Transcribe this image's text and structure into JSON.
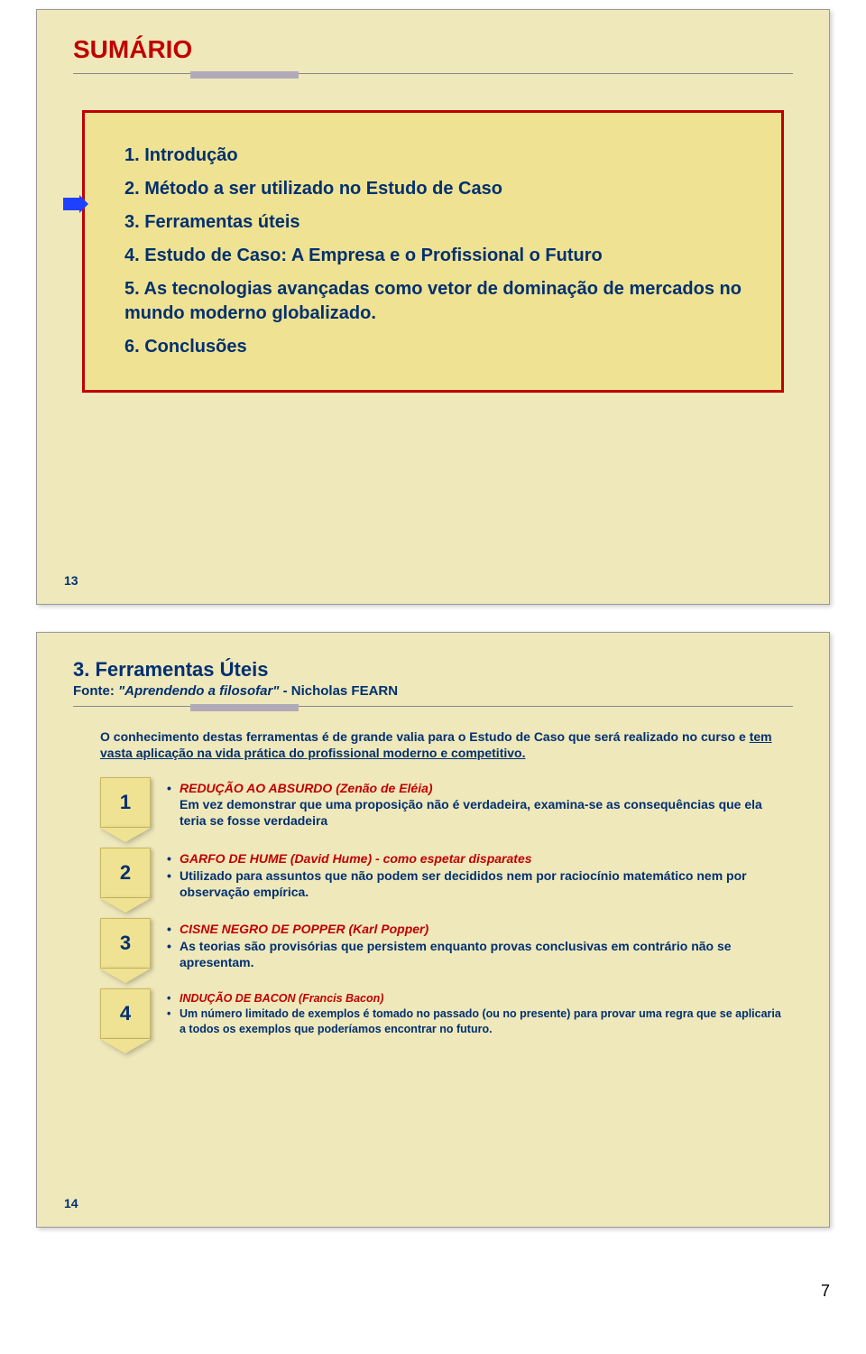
{
  "page_number": "7",
  "slide1": {
    "title": "SUMÁRIO",
    "number": "13",
    "items": [
      "1. Introdução",
      "2. Método a ser utilizado no Estudo de Caso",
      "3. Ferramentas úteis",
      "4. Estudo de Caso: A Empresa e o Profissional o Futuro",
      "5. As tecnologias avançadas como vetor de dominação de mercados no mundo moderno globalizado.",
      "6. Conclusões"
    ]
  },
  "slide2": {
    "number": "14",
    "heading": "3. Ferramentas Úteis",
    "source_label": "Fonte: ",
    "source_quote": "\"Aprendendo a filosofar\"",
    "source_author": " - Nicholas FEARN",
    "intro_a": "O conhecimento destas ferramentas é de grande valia para o Estudo de Caso que será realizado no curso e ",
    "intro_u": "tem vasta aplicação na vida prática do profissional moderno e competitivo.",
    "tools": [
      {
        "n": "1",
        "hl": "REDUÇÃO AO ABSURDO  (Zenão de Eléia)",
        "body": "Em vez demonstrar que uma proposição não é verdadeira, examina-se as consequências que ela teria se fosse verdadeira"
      },
      {
        "n": "2",
        "hl": "GARFO DE HUME (David Hume) - como espetar disparates",
        "body": "Utilizado para assuntos que não podem ser decididos nem por raciocínio matemático nem por observação empírica."
      },
      {
        "n": "3",
        "hl": "CISNE NEGRO DE POPPER  (Karl Popper)",
        "body": "As teorias são provisórias que persistem enquanto provas conclusivas em contrário não se apresentam."
      },
      {
        "n": "4",
        "hl": "INDUÇÃO DE BACON  (Francis Bacon)",
        "body": "Um número limitado de exemplos é tomado no passado (ou no presente) para provar uma regra que se aplicaria a todos os exemplos que poderíamos encontrar no futuro."
      }
    ]
  },
  "colors": {
    "slide_bg": "#efe8bb",
    "box_bg": "#efe292",
    "red": "#c00000",
    "navy": "#003070",
    "arrow": "#2040ff"
  }
}
